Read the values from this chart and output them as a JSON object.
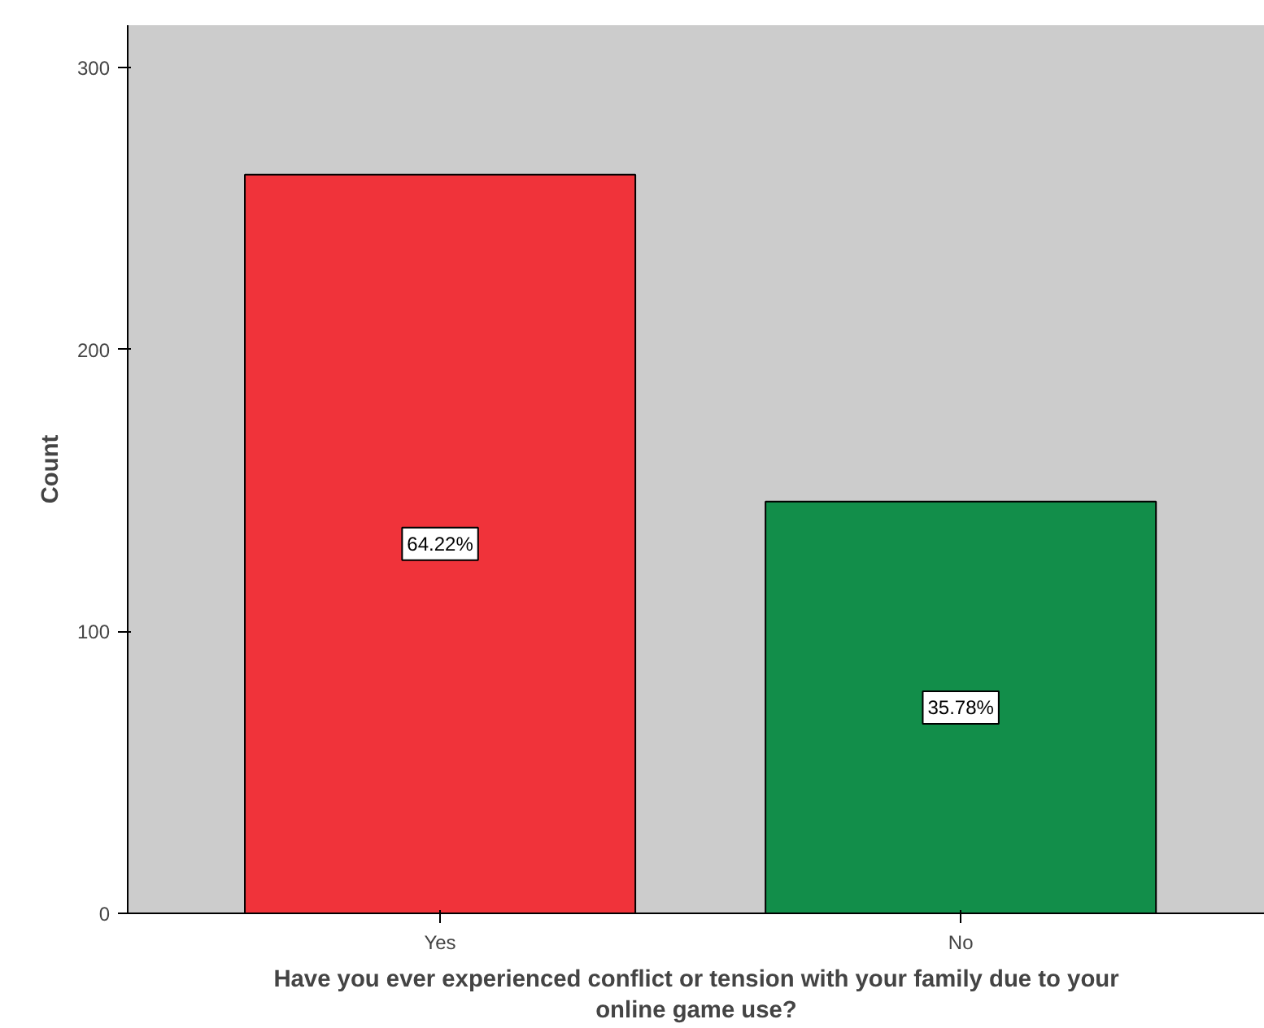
{
  "chart_data": {
    "type": "bar",
    "xlabel": "Have you ever experienced conflict or tension with your family due to your online game use?",
    "ylabel": "Count",
    "categories": [
      "Yes",
      "No"
    ],
    "values": [
      262,
      146
    ],
    "colors": [
      "#f0333a",
      "#128e4a"
    ],
    "annotations": [
      "64.22%",
      "35.78%"
    ],
    "ylim": [
      0,
      315
    ],
    "yticks": [
      0,
      100,
      200,
      300
    ],
    "grid": false
  }
}
